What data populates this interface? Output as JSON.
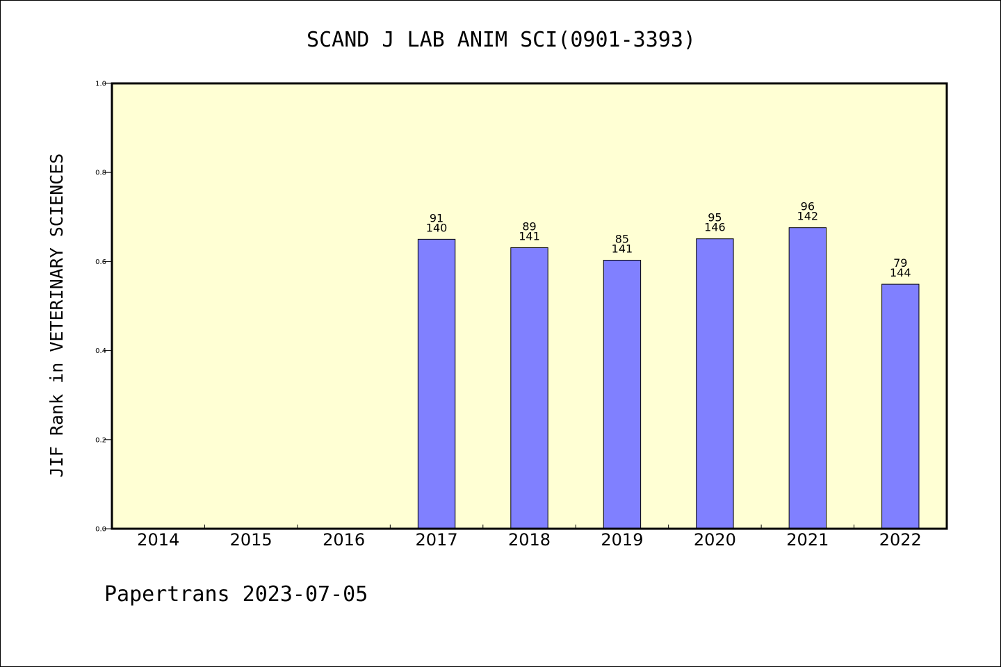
{
  "chart_data": {
    "type": "bar",
    "title": "SCAND J LAB ANIM SCI(0901-3393)",
    "xlabel": "",
    "ylabel": "JIF Rank in VETERINARY SCIENCES",
    "categories": [
      "2014",
      "2015",
      "2016",
      "2017",
      "2018",
      "2019",
      "2020",
      "2021",
      "2022"
    ],
    "series": [
      {
        "values": [
          null,
          null,
          null,
          0.65,
          0.631,
          0.603,
          0.651,
          0.676,
          0.549
        ],
        "rank": [
          null,
          null,
          null,
          91,
          89,
          85,
          95,
          96,
          79
        ],
        "total": [
          null,
          null,
          null,
          140,
          141,
          141,
          146,
          142,
          144
        ]
      }
    ],
    "ylim": [
      0,
      1
    ],
    "yticks": [
      "0.0",
      "0.2",
      "0.4",
      "0.6",
      "0.8",
      "1.0"
    ],
    "grid": false,
    "colors": {
      "plot_background": "#ffffd4",
      "bar": "#8080ff",
      "bar_edge": "#000000"
    }
  },
  "footer": "Papertrans 2023-07-05"
}
